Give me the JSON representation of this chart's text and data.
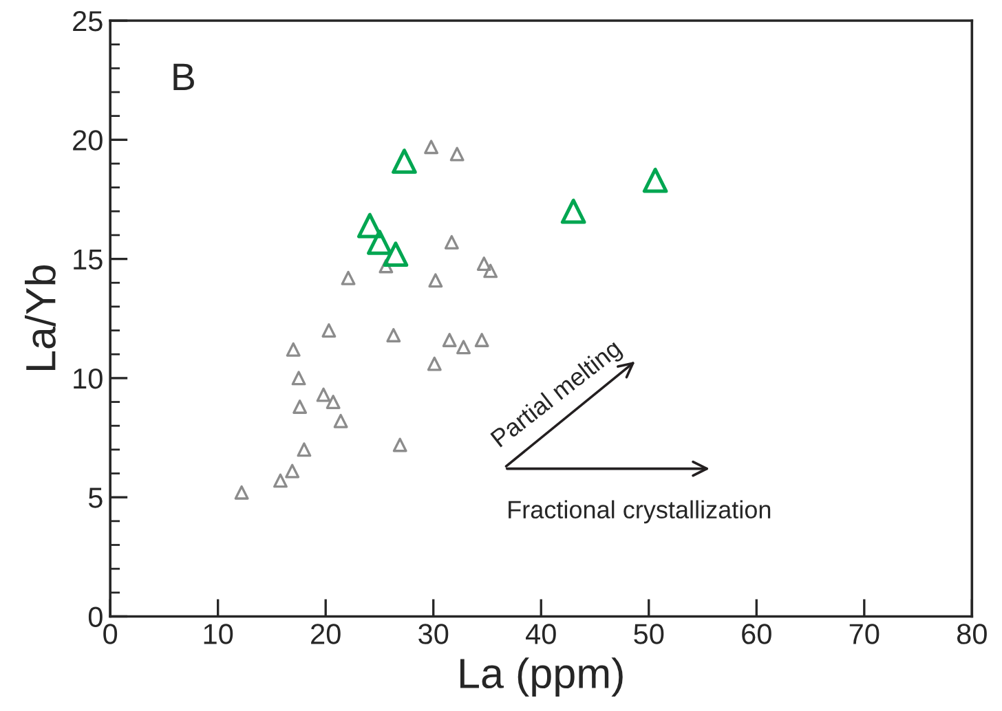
{
  "chart_data": {
    "type": "scatter",
    "xlabel": "La (ppm)",
    "ylabel": "La/Yb",
    "xlim": [
      0,
      80
    ],
    "ylim": [
      0,
      25
    ],
    "xticks": [
      0,
      10,
      20,
      30,
      40,
      50,
      60,
      70,
      80
    ],
    "yticks": [
      0,
      5,
      10,
      15,
      20,
      25
    ],
    "grid": false,
    "legend": false,
    "marker": "triangle",
    "annotations": [
      "B",
      "Partial melting",
      "Fractional crystallization"
    ],
    "series": [
      {
        "color": "#8c8c8c",
        "x": [
          12.2,
          15.8,
          16.9,
          18.0,
          17.6,
          19.8,
          20.7,
          21.4,
          17.5,
          17.0,
          20.3,
          22.1,
          25.6,
          26.3,
          26.9,
          29.8,
          32.2,
          31.7,
          30.2,
          30.1,
          31.5,
          32.8,
          34.5,
          34.7,
          35.3
        ],
        "values": [
          5.2,
          5.7,
          6.1,
          7.0,
          8.8,
          9.3,
          9.0,
          8.2,
          10.0,
          11.2,
          12.0,
          14.2,
          14.7,
          11.8,
          7.2,
          19.7,
          19.4,
          15.7,
          14.1,
          10.6,
          11.6,
          11.3,
          11.6,
          14.8,
          14.5
        ]
      },
      {
        "color": "#00a651",
        "x": [
          27.3,
          24.1,
          25.0,
          26.5,
          43.0,
          50.6
        ],
        "values": [
          19.1,
          16.4,
          15.7,
          15.2,
          17.0,
          18.3
        ]
      }
    ]
  }
}
